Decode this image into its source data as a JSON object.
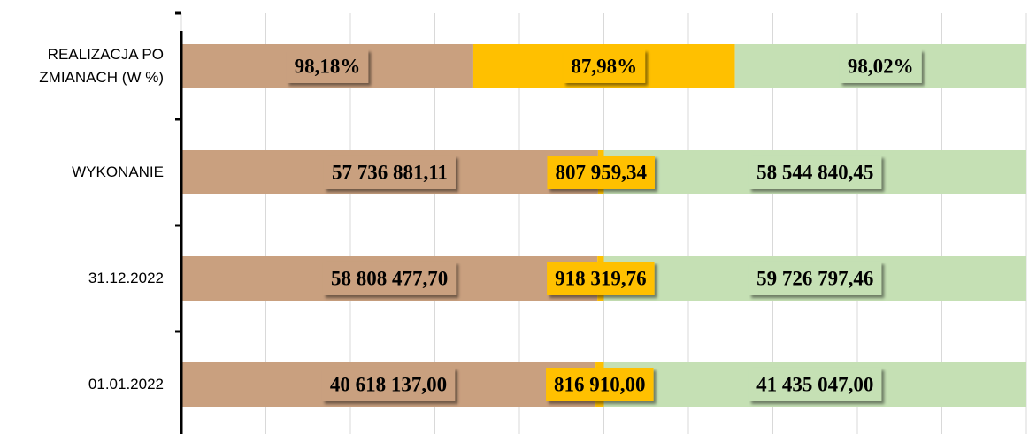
{
  "chart_data": {
    "type": "bar100",
    "categories": [
      "01.01.2022",
      "31.12.2022",
      "WYKONANIE",
      "REALIZACJA PO ZMIANACH (W %)"
    ],
    "series": [
      {
        "color": "#c9a07f",
        "values": [
          40618137.0,
          58808477.7,
          57736881.11,
          98.18
        ],
        "value_labels": [
          "40 618 137,00",
          "58 808 477,70",
          "57 736 881,11",
          "98,18%"
        ]
      },
      {
        "color": "#ffc000",
        "values": [
          816910.0,
          918319.76,
          807959.34,
          87.98
        ],
        "value_labels": [
          "816 910,00",
          "918 319,76",
          "807 959,34",
          "87,98%"
        ]
      },
      {
        "color": "#c5e0b4",
        "values": [
          41435047.0,
          59726797.46,
          58544840.45,
          98.02
        ],
        "value_labels": [
          "41 435 047,00",
          "59 726 797,46",
          "58 544 840,45",
          "98,02%"
        ]
      }
    ],
    "xlim": [
      0,
      100
    ],
    "xticks": [
      0,
      10,
      20,
      30,
      40,
      50,
      60,
      70,
      80,
      90,
      100
    ],
    "grid": true
  }
}
